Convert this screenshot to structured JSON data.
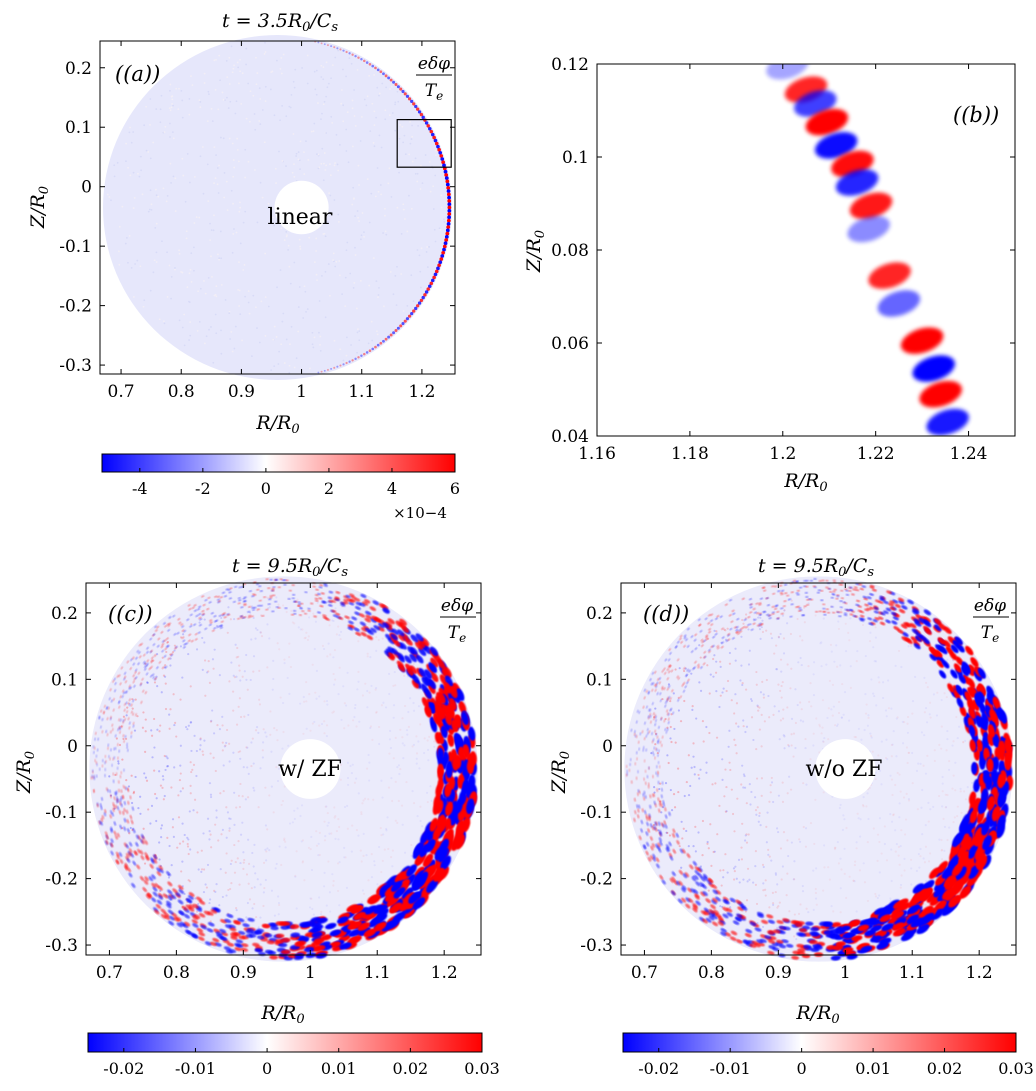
{
  "colors": {
    "negative": "#0000ff",
    "positive": "#ff0000",
    "background": "#ffffff"
  },
  "chart_data": [
    {
      "panel": "(a)",
      "type": "heatmap",
      "title": "t = 3.5R0/Cs",
      "xlabel": "R/R0",
      "ylabel": "Z/R0",
      "field_label": "eδφ/Te",
      "center_label": "linear",
      "xlim": [
        0.665,
        1.255
      ],
      "ylim": [
        -0.315,
        0.245
      ],
      "xticks": [
        "0.7",
        "0.8",
        "0.9",
        "1",
        "1.1",
        "1.2"
      ],
      "yticks": [
        "0.2",
        "0.1",
        "0",
        "-0.1",
        "-0.2",
        "-0.3"
      ],
      "inset_box": {
        "r": [
          1.16,
          1.25
        ],
        "z": [
          0.04,
          0.12
        ]
      },
      "colorbar": {
        "range": [
          -5.2,
          6.0
        ],
        "ticks": [
          "-4",
          "-2",
          "0",
          "2",
          "4",
          "6"
        ],
        "multiplier": "×10−4"
      }
    },
    {
      "panel": "(b)",
      "type": "heatmap",
      "xlabel": "R/R0",
      "ylabel": "Z/R0",
      "xlim": [
        1.16,
        1.25
      ],
      "ylim": [
        0.04,
        0.12
      ],
      "xticks": [
        "1.16",
        "1.18",
        "1.2",
        "1.22",
        "1.24"
      ],
      "yticks": [
        "0.12",
        "0.1",
        "0.08",
        "0.06",
        "0.04"
      ]
    },
    {
      "panel": "(c)",
      "type": "heatmap",
      "title": "t = 9.5R0/Cs",
      "xlabel": "R/R0",
      "ylabel": "Z/R0",
      "field_label": "eδφ/Te",
      "center_label": "w/ ZF",
      "xlim": [
        0.665,
        1.255
      ],
      "ylim": [
        -0.315,
        0.245
      ],
      "xticks": [
        "0.7",
        "0.8",
        "0.9",
        "1",
        "1.1",
        "1.2"
      ],
      "yticks": [
        "0.2",
        "0.1",
        "0",
        "-0.1",
        "-0.2",
        "-0.3"
      ],
      "colorbar": {
        "range": [
          -0.025,
          0.03
        ],
        "ticks": [
          "-0.02",
          "-0.01",
          "0",
          "0.01",
          "0.02",
          "0.03"
        ]
      }
    },
    {
      "panel": "(d)",
      "type": "heatmap",
      "title": "t = 9.5R0/Cs",
      "xlabel": "R/R0",
      "ylabel": "Z/R0",
      "field_label": "eδφ/Te",
      "center_label": "w/o ZF",
      "xlim": [
        0.665,
        1.255
      ],
      "ylim": [
        -0.315,
        0.245
      ],
      "xticks": [
        "0.7",
        "0.8",
        "0.9",
        "1",
        "1.1",
        "1.2"
      ],
      "yticks": [
        "0.2",
        "0.1",
        "0",
        "-0.1",
        "-0.2",
        "-0.3"
      ],
      "colorbar": {
        "range": [
          -0.025,
          0.03
        ],
        "ticks": [
          "-0.02",
          "-0.01",
          "0",
          "0.01",
          "0.02",
          "0.03"
        ]
      }
    }
  ]
}
